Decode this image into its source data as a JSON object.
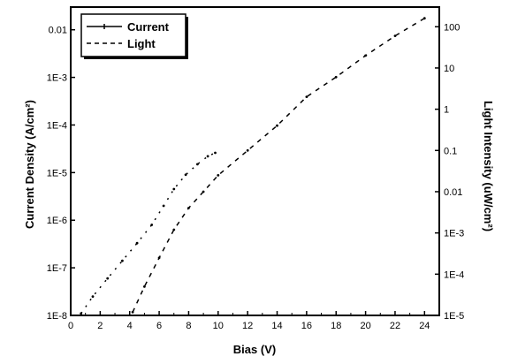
{
  "chart_data": {
    "type": "scatter",
    "xlabel": "Bias  (V)",
    "ylabel_left": "Current Density  (A/cm²)",
    "ylabel_right": "Light Intensity  (uW/cm²)",
    "xlim": [
      0,
      25
    ],
    "ylim_left": [
      1e-08,
      0.03
    ],
    "ylim_right": [
      1e-05,
      300
    ],
    "y_scale": "log",
    "x_ticks": [
      "0",
      "2",
      "4",
      "6",
      "8",
      "10",
      "12",
      "14",
      "16",
      "18",
      "20",
      "22",
      "24"
    ],
    "y_ticks_left": [
      "1E-8",
      "1E-7",
      "1E-6",
      "1E-5",
      "1E-4",
      "1E-3",
      "0.01"
    ],
    "y_ticks_right": [
      "1E-5",
      "1E-4",
      "1E-3",
      "0.01",
      "0.1",
      "1",
      "10",
      "100"
    ],
    "legend_position": "top-left",
    "series": [
      {
        "name": "Current",
        "axis": "left",
        "style": "solid",
        "x": [
          0.7,
          1.5,
          2.5,
          3.5,
          4.5,
          5.5,
          6.3,
          7.0,
          7.8,
          8.6,
          9.3,
          9.8
        ],
        "y": [
          1.1e-08,
          2.5e-08,
          6e-08,
          1.4e-07,
          3.3e-07,
          8e-07,
          2e-06,
          4.5e-06,
          9e-06,
          1.5e-05,
          2.2e-05,
          2.6e-05
        ]
      },
      {
        "name": "Light",
        "axis": "right",
        "style": "dashed",
        "x": [
          4.2,
          5.0,
          6.0,
          7.0,
          8.0,
          9.0,
          10.0,
          12.0,
          14.0,
          16.0,
          18.0,
          20.0,
          22.0,
          24.0
        ],
        "y": [
          1.2e-05,
          5e-05,
          0.00025,
          0.0012,
          0.004,
          0.01,
          0.025,
          0.1,
          0.4,
          2,
          6,
          20,
          60,
          160
        ]
      }
    ]
  }
}
